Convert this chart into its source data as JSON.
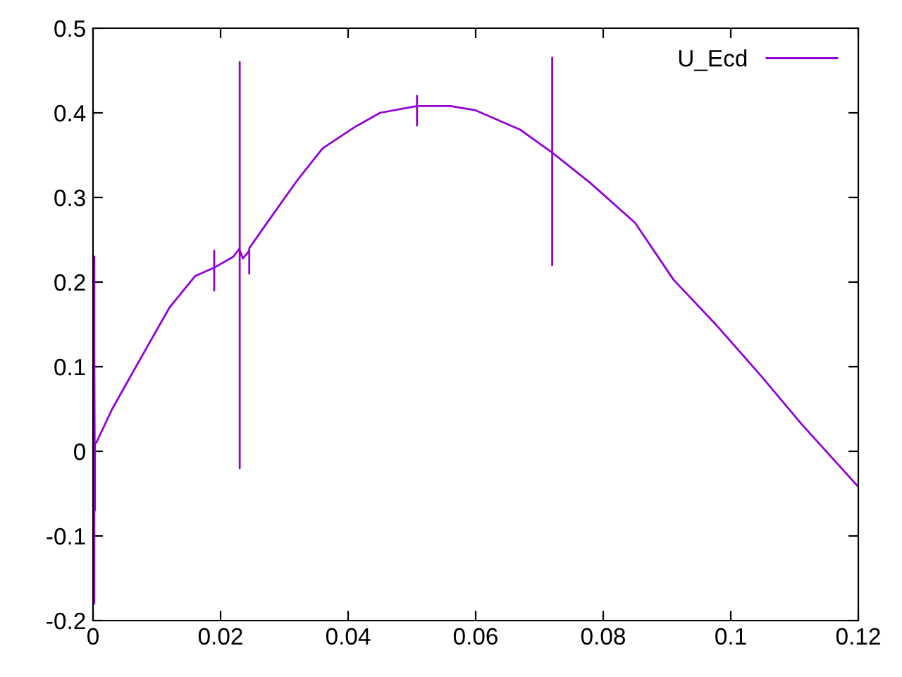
{
  "chart_data": {
    "type": "line",
    "xlim": [
      0,
      0.12
    ],
    "ylim": [
      -0.2,
      0.5
    ],
    "xticks": [
      0,
      0.02,
      0.04,
      0.06,
      0.08,
      0.1,
      0.12
    ],
    "yticks": [
      -0.2,
      -0.1,
      0,
      0.1,
      0.2,
      0.3,
      0.4,
      0.5
    ],
    "grid": false,
    "legend": "top right",
    "marker": "none",
    "line_style": "solid",
    "series": [
      {
        "name": "U_Ecd",
        "color": "#9400d3",
        "x": [
          0.0001,
          0.0002,
          0.0002,
          0.0002,
          0.0003,
          0.0003,
          0.0005,
          0.003,
          0.008,
          0.012,
          0.016,
          0.019,
          0.019,
          0.019,
          0.019,
          0.022,
          0.023,
          0.023,
          0.023,
          0.023,
          0.0235,
          0.0245,
          0.0245,
          0.0245,
          0.027,
          0.032,
          0.036,
          0.041,
          0.045,
          0.0508,
          0.0508,
          0.0508,
          0.0508,
          0.056,
          0.06,
          0.067,
          0.072,
          0.072,
          0.072,
          0.072,
          0.078,
          0.085,
          0.091,
          0.098,
          0.105,
          0.111,
          0.12
        ],
        "values": [
          0.12,
          0.23,
          -0.18,
          0.12,
          -0.07,
          0.01,
          0.01,
          0.05,
          0.117,
          0.17,
          0.207,
          0.217,
          0.237,
          0.19,
          0.217,
          0.23,
          0.24,
          0.46,
          -0.02,
          0.238,
          0.228,
          0.237,
          0.21,
          0.24,
          0.267,
          0.32,
          0.358,
          0.383,
          0.4,
          0.408,
          0.42,
          0.385,
          0.408,
          0.408,
          0.403,
          0.38,
          0.353,
          0.465,
          0.22,
          0.353,
          0.317,
          0.27,
          0.203,
          0.147,
          0.087,
          0.033,
          -0.042
        ]
      }
    ]
  }
}
